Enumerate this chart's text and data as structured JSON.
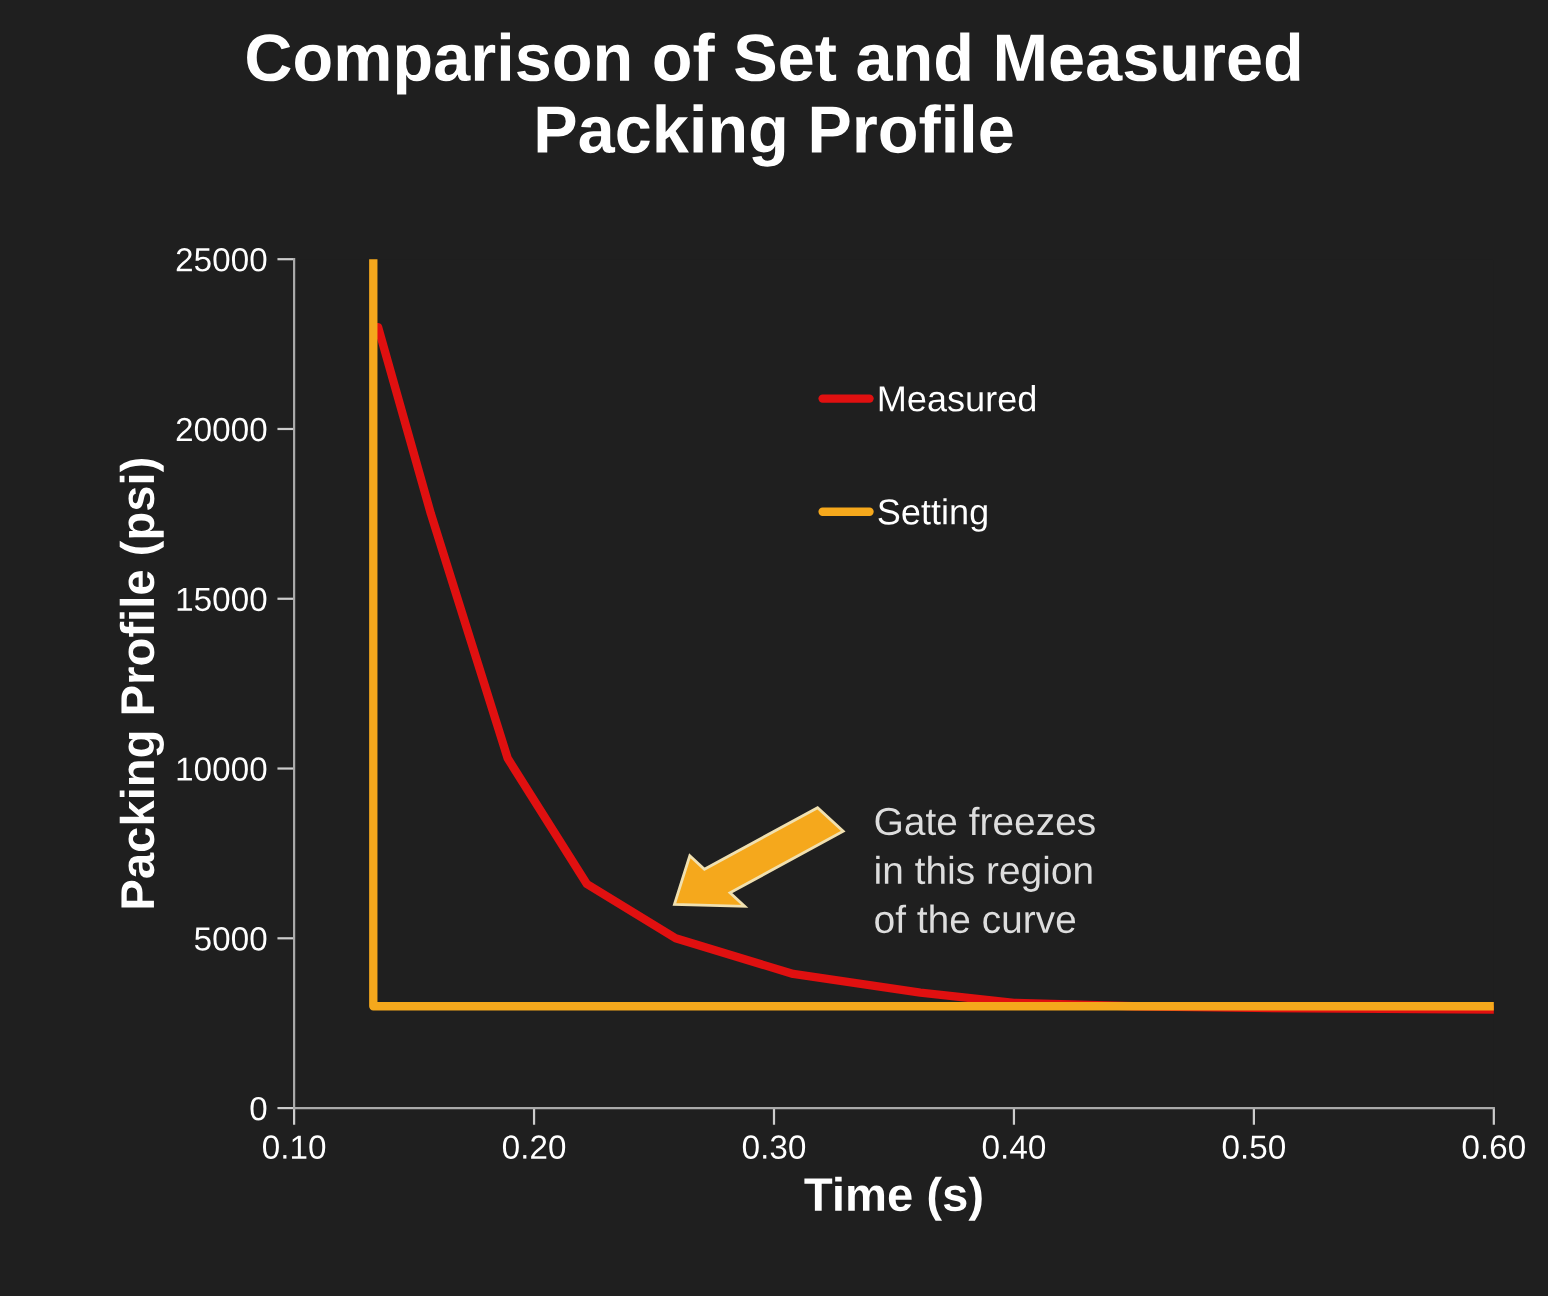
{
  "chart_data": {
    "type": "line",
    "title": "Comparison of Set and Measured\nPacking Profile",
    "xlabel": "Time (s)",
    "ylabel": "Packing Profile (psi)",
    "series": [
      {
        "name": "Measured",
        "color": "#e01010",
        "x": [
          0.135,
          0.157,
          0.189,
          0.222,
          0.259,
          0.308,
          0.361,
          0.4,
          0.45,
          0.5,
          0.6
        ],
        "values": [
          23000,
          17500,
          10300,
          6600,
          5000,
          3950,
          3400,
          3100,
          3000,
          2950,
          2900
        ]
      },
      {
        "name": "Setting",
        "color": "#f5a81c",
        "x": [
          0.133,
          0.133,
          0.6
        ],
        "values": [
          25000,
          3000,
          3000
        ]
      }
    ],
    "annotations": [
      "Gate freezes\nin this region\nof the curve"
    ],
    "xlim": [
      0.1,
      0.6
    ],
    "xticks": [
      {
        "value": 0.1,
        "label": "0.10"
      },
      {
        "value": 0.2,
        "label": "0.20"
      },
      {
        "value": 0.3,
        "label": "0.30"
      },
      {
        "value": 0.4,
        "label": "0.40"
      },
      {
        "value": 0.5,
        "label": "0.50"
      },
      {
        "value": 0.6,
        "label": "0.60"
      }
    ],
    "ylim": [
      0,
      25000
    ],
    "yticks": [
      0,
      5000,
      10000,
      15000,
      20000,
      25000
    ],
    "legend": "top",
    "grid": false,
    "marker": "none",
    "line_style": "solid"
  }
}
